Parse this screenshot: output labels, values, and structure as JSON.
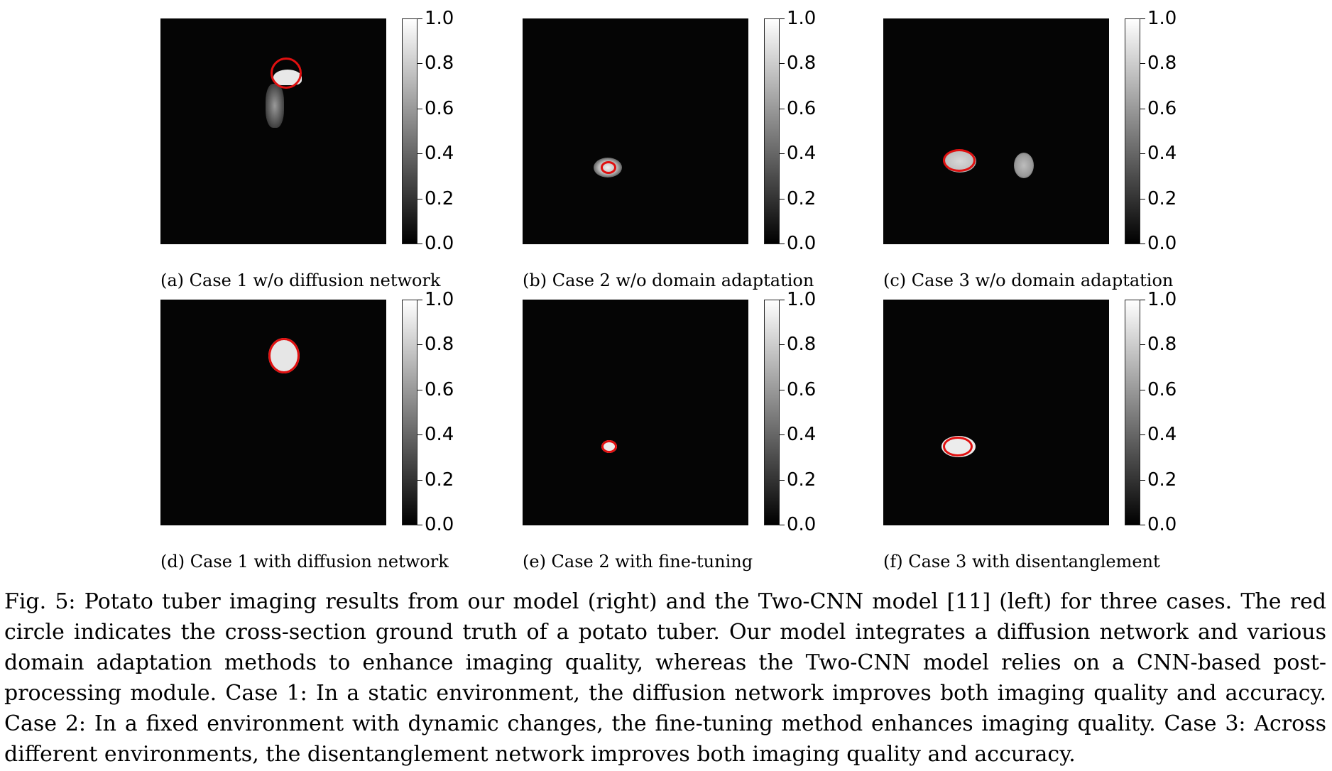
{
  "colorbar": {
    "ticks": [
      "1.0",
      "0.8",
      "0.6",
      "0.4",
      "0.2",
      "0.0"
    ],
    "min": 0.0,
    "max": 1.0,
    "colormap": "gray"
  },
  "ground_truth_color": "#e01010",
  "panels": [
    {
      "id": "a",
      "caption": "(a) Case 1 w/o diffusion network"
    },
    {
      "id": "b",
      "caption": "(b) Case 2 w/o domain adaptation"
    },
    {
      "id": "c",
      "caption": "(c) Case 3 w/o domain adaptation"
    },
    {
      "id": "d",
      "caption": "(d) Case 1 with diffusion network"
    },
    {
      "id": "e",
      "caption": "(e) Case 2 with fine-tuning"
    },
    {
      "id": "f",
      "caption": "(f) Case 3 with disentanglement"
    }
  ],
  "figure_caption": "Fig. 5: Potato tuber imaging results from our model (right) and the Two-CNN model [11] (left) for three cases. The red circle indicates the cross-section ground truth of a potato tuber. Our model integrates a diffusion network and various domain adaptation methods to enhance imaging quality, whereas the Two-CNN model relies on a CNN-based post-processing module. Case 1: In a static environment, the diffusion network improves both imaging quality and accuracy. Case 2: In a fixed environment with dynamic changes, the fine-tuning method enhances imaging quality. Case 3: Across different environments, the disentanglement network improves both imaging quality and accuracy."
}
